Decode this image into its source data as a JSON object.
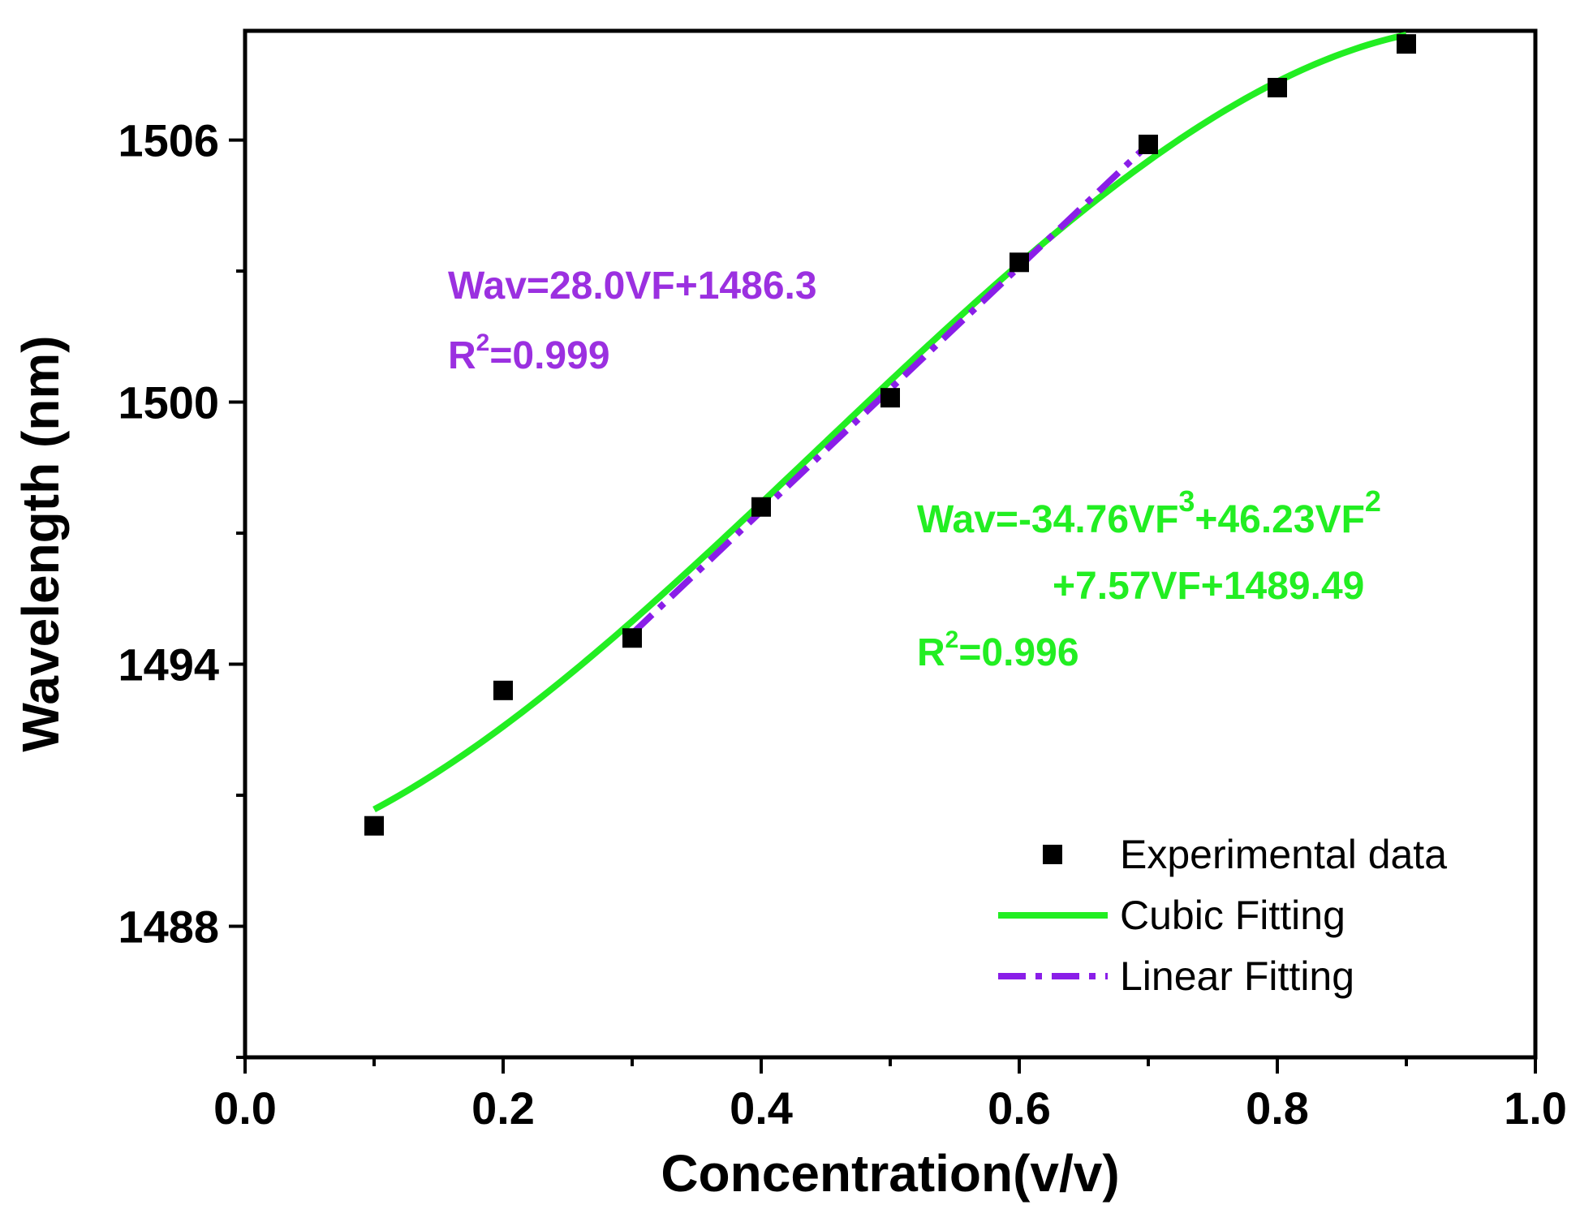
{
  "chart_data": {
    "type": "scatter",
    "xlabel": "Concentration(v/v)",
    "ylabel": "Wavelength (nm)",
    "xlim": [
      0.0,
      1.0
    ],
    "ylim": [
      1485,
      1508.5
    ],
    "x_ticks": [
      0.0,
      0.2,
      0.4,
      0.6,
      0.8,
      1.0
    ],
    "x_tick_labels": [
      "0.0",
      "0.2",
      "0.4",
      "0.6",
      "0.8",
      "1.0"
    ],
    "y_ticks": [
      1488,
      1494,
      1500,
      1506
    ],
    "y_tick_labels": [
      "1488",
      "1494",
      "1500",
      "1506"
    ],
    "series": [
      {
        "name": "Experimental data",
        "kind": "scatter",
        "color": "#000000",
        "x": [
          0.1,
          0.2,
          0.3,
          0.4,
          0.5,
          0.6,
          0.7,
          0.8,
          0.9
        ],
        "y": [
          1490.3,
          1493.4,
          1494.6,
          1497.6,
          1500.1,
          1503.2,
          1505.9,
          1507.2,
          1508.2
        ]
      },
      {
        "name": "Cubic Fitting",
        "kind": "line",
        "style": "solid",
        "color": "#22ee22",
        "x_range": [
          0.1,
          0.9
        ],
        "coefficients": {
          "a3": -34.76,
          "a2": 46.23,
          "a1": 7.57,
          "a0": 1489.49
        }
      },
      {
        "name": "Linear Fitting",
        "kind": "line",
        "style": "dash-dot",
        "color": "#8a1ee8",
        "x_range": [
          0.3,
          0.7
        ],
        "coefficients": {
          "slope": 28.0,
          "intercept": 1486.3
        }
      }
    ],
    "legend": {
      "position": "bottom-right",
      "entries": [
        "Experimental data",
        "Cubic Fitting",
        "Linear Fitting"
      ]
    },
    "annotations": {
      "linear": {
        "color": "#9b30e0",
        "equation": "Wav=28.0VF+1486.3",
        "r2_prefix": "R",
        "r2_sup": "2",
        "r2_value": "=0.999"
      },
      "cubic": {
        "color": "#22ee22",
        "line1_a": "Wav=-34.76VF",
        "line1_sup1": "3",
        "line1_b": "+46.23VF",
        "line1_sup2": "2",
        "line2": "+7.57VF+1489.49",
        "r2_prefix": "R",
        "r2_sup": "2",
        "r2_value": "=0.996"
      }
    }
  }
}
